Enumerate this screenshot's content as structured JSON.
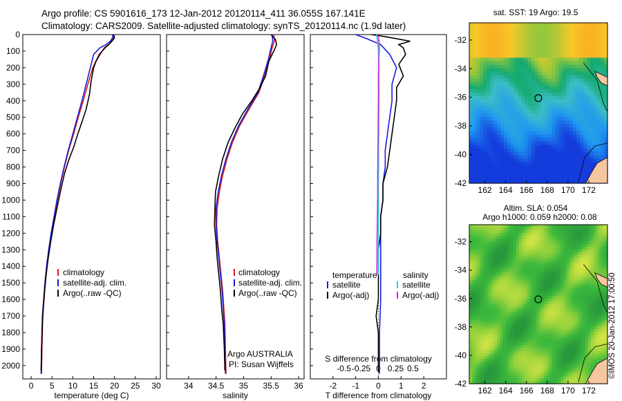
{
  "header": {
    "title_line1": "Argo profile: CS 5901616_173 12-Jan-2012 20120114_411 36.055S 167.141E",
    "title_line2": "Climatology: CARS2009. Satellite-adjusted climatology: synTS_20120114.nc (1.9d later)"
  },
  "stamp": "©IMOS 20-Jan-2012 17:00:50",
  "colors": {
    "climatology": "#d81818",
    "satellite": "#1a1ad8",
    "argo": "#000000",
    "sat_salinity": "#18d8e0",
    "argo_salinity": "#e020e0"
  },
  "chart_data": [
    {
      "type": "line",
      "xlabel": "temperature (deg C)",
      "ylabel": "",
      "xlim": [
        -2,
        31
      ],
      "ylim": [
        2080,
        0
      ],
      "xticks": [
        "0",
        "5",
        "10",
        "15",
        "20",
        "25",
        "30"
      ],
      "yticks": [
        "0",
        "100",
        "200",
        "300",
        "400",
        "500",
        "600",
        "700",
        "800",
        "900",
        "1000",
        "1100",
        "1200",
        "1300",
        "1400",
        "1500",
        "1600",
        "1700",
        "1800",
        "1900",
        "2000"
      ],
      "legend": [
        "climatology",
        "satellite-adj. clim.",
        "Argo(..raw -QC)"
      ],
      "legend_position": "lower-right",
      "series": [
        {
          "name": "climatology",
          "color": "#d81818",
          "x": [
            19.9,
            19.8,
            19.3,
            18.7,
            17.8,
            16.3,
            14.8,
            13.6,
            12.5,
            11.3,
            10.2,
            9.0,
            8.0,
            7.1,
            6.3,
            5.6,
            4.9,
            4.3,
            3.8,
            3.4,
            3.1,
            2.8,
            2.6,
            2.5
          ],
          "y": [
            0,
            20,
            40,
            60,
            80,
            120,
            200,
            300,
            400,
            500,
            600,
            700,
            800,
            900,
            1000,
            1100,
            1200,
            1300,
            1400,
            1500,
            1600,
            1700,
            1900,
            2050
          ]
        },
        {
          "name": "satellite-adj. clim.",
          "color": "#1a1ad8",
          "x": [
            19.6,
            19.5,
            19.0,
            18.0,
            16.5,
            15.0,
            14.2,
            13.2,
            12.2,
            11.1,
            10.0,
            8.9,
            7.9,
            7.0,
            6.2,
            5.5,
            4.8,
            4.2,
            3.7,
            3.3,
            3.0,
            2.7,
            2.5,
            2.4
          ],
          "y": [
            0,
            20,
            40,
            60,
            80,
            120,
            200,
            300,
            400,
            500,
            600,
            700,
            800,
            900,
            1000,
            1100,
            1200,
            1300,
            1400,
            1500,
            1600,
            1700,
            1900,
            2050
          ]
        },
        {
          "name": "Argo(..raw -QC)",
          "color": "#000000",
          "x": [
            19.8,
            20.0,
            19.4,
            18.6,
            17.6,
            16.5,
            15.6,
            15.0,
            14.4,
            14.0,
            13.2,
            12.3,
            11.2,
            10.2,
            9.0,
            8.0,
            7.0,
            6.2,
            5.4,
            4.7,
            4.1,
            3.6,
            3.2,
            2.9,
            2.7,
            2.5,
            2.4
          ],
          "y": [
            0,
            20,
            40,
            60,
            80,
            120,
            160,
            200,
            280,
            360,
            450,
            520,
            600,
            680,
            760,
            840,
            950,
            1050,
            1150,
            1250,
            1350,
            1450,
            1550,
            1650,
            1750,
            1900,
            2030
          ]
        }
      ]
    },
    {
      "type": "line",
      "xlabel": "salinity",
      "ylabel": "",
      "xlim": [
        33.6,
        36.1
      ],
      "ylim": [
        2080,
        0
      ],
      "xticks": [
        "34",
        "34.5",
        "35",
        "35.5",
        "36"
      ],
      "legend": [
        "climatology",
        "satellite-adj. clim.",
        "Argo(..raw -QC)"
      ],
      "legend_position": "lower-right",
      "annotation": [
        "Argo AUSTRALIA",
        "PI: Susan Wijffels"
      ],
      "series": [
        {
          "name": "climatology",
          "color": "#d81818",
          "x": [
            35.55,
            35.56,
            35.52,
            35.47,
            35.38,
            35.28,
            35.1,
            34.93,
            34.8,
            34.7,
            34.62,
            34.56,
            34.52,
            34.51,
            34.53,
            34.56,
            34.59,
            34.62,
            34.64,
            34.66,
            34.67,
            34.68
          ],
          "y": [
            0,
            40,
            80,
            150,
            250,
            350,
            450,
            550,
            650,
            750,
            850,
            950,
            1050,
            1150,
            1250,
            1350,
            1450,
            1550,
            1650,
            1750,
            1900,
            2050
          ]
        },
        {
          "name": "satellite-adj. clim.",
          "color": "#1a1ad8",
          "x": [
            35.52,
            35.53,
            35.5,
            35.45,
            35.36,
            35.26,
            35.08,
            34.91,
            34.78,
            34.68,
            34.6,
            34.54,
            34.5,
            34.5,
            34.52,
            34.55,
            34.58,
            34.61,
            34.63,
            34.65,
            34.66,
            34.67
          ],
          "y": [
            0,
            40,
            80,
            150,
            250,
            350,
            450,
            550,
            650,
            750,
            850,
            950,
            1050,
            1150,
            1250,
            1350,
            1450,
            1550,
            1650,
            1750,
            1900,
            2050
          ]
        },
        {
          "name": "Argo(..raw -QC)",
          "color": "#000000",
          "x": [
            35.5,
            35.58,
            35.6,
            35.55,
            35.46,
            35.4,
            35.3,
            35.15,
            34.98,
            34.85,
            34.72,
            34.62,
            34.55,
            34.49,
            34.48,
            34.47,
            34.5,
            34.52,
            34.55,
            34.58,
            34.6,
            34.63,
            34.65,
            34.66
          ],
          "y": [
            0,
            30,
            60,
            100,
            160,
            250,
            320,
            400,
            480,
            560,
            650,
            750,
            850,
            950,
            1050,
            1150,
            1250,
            1350,
            1450,
            1550,
            1650,
            1750,
            1900,
            2030
          ]
        }
      ]
    },
    {
      "type": "line",
      "xlabel": "T difference from climatology",
      "xlabel_top": "S difference from climatology",
      "ylabel": "",
      "xlim": [
        -3,
        3
      ],
      "ylim": [
        2080,
        0
      ],
      "xticks": [
        "-2",
        "-1",
        "0",
        "1",
        "2"
      ],
      "xticks_top": [
        "-0.5",
        "-0.25",
        "0",
        "0.25",
        "0.5"
      ],
      "legend_groups": [
        {
          "title": "temperature",
          "items": [
            "satellite",
            "Argo(-adj)"
          ]
        },
        {
          "title": "salinity",
          "items": [
            "satellite",
            "Argo(-adj)"
          ]
        }
      ],
      "series": [
        {
          "name": "satellite",
          "group": "temperature",
          "color": "#1a1ad8",
          "x": [
            -1.0,
            -0.6,
            0.1,
            0.5,
            0.8,
            0.6,
            0.6,
            0.5,
            0.4,
            0.3,
            0.3,
            0.2,
            0.2,
            0.1,
            0.1,
            0.1,
            0.1,
            0.1,
            0.1,
            0.05,
            0.05
          ],
          "y": [
            0,
            20,
            60,
            120,
            200,
            300,
            400,
            500,
            600,
            700,
            800,
            900,
            1000,
            1100,
            1200,
            1300,
            1400,
            1500,
            1600,
            1800,
            2050
          ]
        },
        {
          "name": "Argo(-adj)",
          "group": "temperature",
          "color": "#000000",
          "x": [
            -0.3,
            0.4,
            1.0,
            1.4,
            0.9,
            1.1,
            1.2,
            0.9,
            1.1,
            0.8,
            0.8,
            0.7,
            0.6,
            0.5,
            0.4,
            0.2,
            0.2,
            0.1,
            0.1,
            0.0,
            0.0,
            0.0,
            0.0,
            -0.1,
            0.0,
            0.0,
            0.0
          ],
          "y": [
            0,
            15,
            30,
            40,
            60,
            80,
            120,
            180,
            250,
            320,
            400,
            500,
            600,
            700,
            800,
            900,
            1000,
            1100,
            1200,
            1300,
            1400,
            1500,
            1600,
            1700,
            1800,
            1900,
            2040
          ]
        },
        {
          "name": "satellite",
          "group": "salinity",
          "color": "#18d8e0",
          "x": [
            -0.08,
            -0.04,
            0.0,
            0.02,
            0.03,
            0.03,
            0.02,
            0.02,
            0.01,
            0.01,
            0.0,
            0.0,
            0.0,
            0.0,
            0.0,
            0.0
          ],
          "y": [
            0,
            40,
            100,
            200,
            300,
            400,
            500,
            600,
            700,
            800,
            900,
            1000,
            1100,
            1200,
            1300,
            1450
          ]
        },
        {
          "name": "Argo(-adj)",
          "group": "salinity",
          "color": "#e020e0",
          "x": [
            -0.05,
            0.02,
            0.04,
            0.02,
            0.0,
            0.0,
            -0.01,
            -0.02,
            -0.03,
            -0.03,
            -0.04,
            -0.05,
            -0.06,
            -0.06,
            -0.07
          ],
          "y": [
            0,
            30,
            80,
            150,
            250,
            400,
            550,
            700,
            850,
            950,
            1050,
            1150,
            1250,
            1350,
            1450
          ]
        }
      ]
    },
    {
      "type": "heatmap",
      "title": "sat. SST: 19 Argo: 19.5",
      "xlim": [
        160.5,
        173.8
      ],
      "ylim": [
        -42,
        -30.8
      ],
      "xticks": [
        "162",
        "164",
        "166",
        "168",
        "170",
        "172"
      ],
      "yticks": [
        "-32",
        "-34",
        "-36",
        "-38",
        "-40",
        "-42"
      ],
      "marker": {
        "lon": 167.141,
        "lat": -36.055
      }
    },
    {
      "type": "heatmap",
      "title": "Altim. SLA: 0.054",
      "subtitle": "Argo h1000: 0.059 h2000: 0.08",
      "xlim": [
        160.5,
        173.8
      ],
      "ylim": [
        -42,
        -30.8
      ],
      "xticks": [
        "162",
        "164",
        "166",
        "168",
        "170",
        "172"
      ],
      "yticks": [
        "-32",
        "-34",
        "-36",
        "-38",
        "-40",
        "-42"
      ],
      "marker": {
        "lon": 167.141,
        "lat": -36.055
      }
    }
  ]
}
